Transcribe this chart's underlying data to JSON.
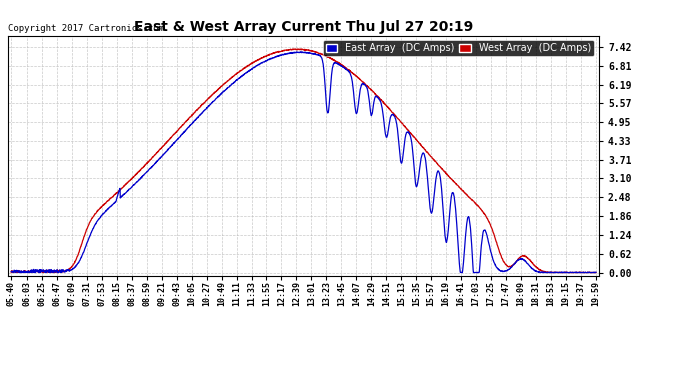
{
  "title": "East & West Array Current Thu Jul 27 20:19",
  "copyright": "Copyright 2017 Cartronics.com",
  "legend_east": "East Array  (DC Amps)",
  "legend_west": "West Array  (DC Amps)",
  "east_color": "#0000cc",
  "west_color": "#cc0000",
  "background_color": "#ffffff",
  "plot_bg_color": "#ffffff",
  "grid_color": "#bbbbbb",
  "yticks": [
    0.0,
    0.62,
    1.24,
    1.86,
    2.48,
    3.1,
    3.71,
    4.33,
    4.95,
    5.57,
    6.19,
    6.81,
    7.42
  ],
  "ylim": [
    -0.1,
    7.8
  ],
  "xtick_labels": [
    "05:40",
    "06:03",
    "06:25",
    "06:47",
    "07:09",
    "07:31",
    "07:53",
    "08:15",
    "08:37",
    "08:59",
    "09:21",
    "09:43",
    "10:05",
    "10:27",
    "10:49",
    "11:11",
    "11:33",
    "11:55",
    "12:17",
    "12:39",
    "13:01",
    "13:23",
    "13:45",
    "14:07",
    "14:29",
    "14:51",
    "15:13",
    "15:35",
    "15:57",
    "16:19",
    "16:41",
    "17:03",
    "17:25",
    "17:47",
    "18:09",
    "18:31",
    "18:53",
    "19:15",
    "19:37",
    "19:59"
  ]
}
